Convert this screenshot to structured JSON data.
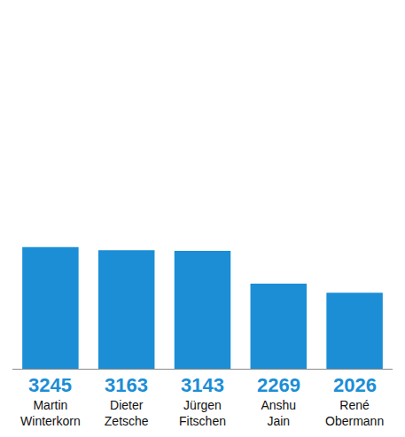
{
  "chart_data": {
    "type": "bar",
    "categories": [
      "Martin Winterkorn",
      "Dieter Zetsche",
      "Jürgen Fitschen",
      "Anshu Jain",
      "René Obermann"
    ],
    "values": [
      3245,
      3163,
      3143,
      2269,
      2026
    ],
    "color": "#1b8ed6",
    "ylim": [
      0,
      9600
    ],
    "data_labels": true,
    "tick_labels": "x"
  }
}
